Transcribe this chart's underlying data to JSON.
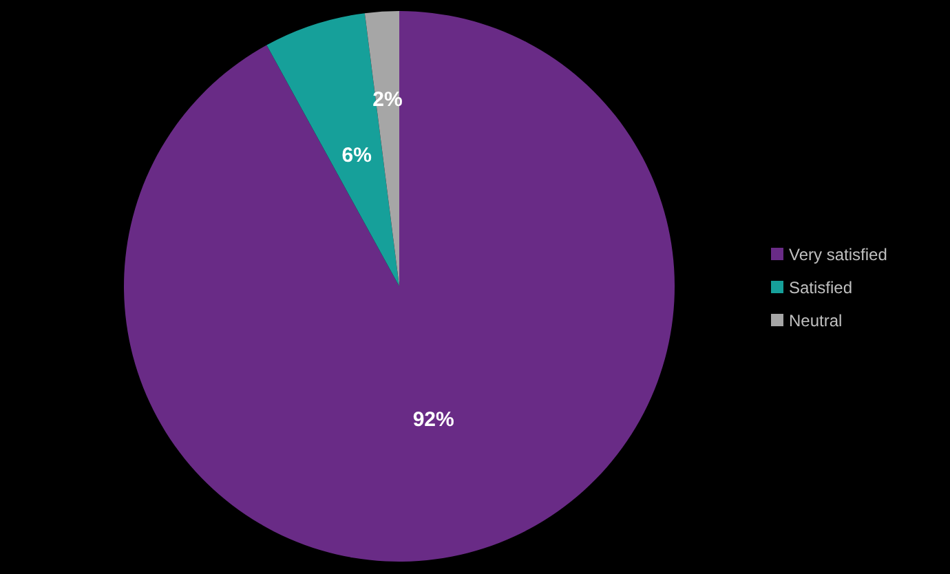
{
  "chart_data": {
    "type": "pie",
    "categories": [
      "Very satisfied",
      "Satisfied",
      "Neutral"
    ],
    "values": [
      92,
      6,
      2
    ],
    "colors": [
      "#692b86",
      "#16a09a",
      "#a6a6a6"
    ],
    "value_labels": [
      "92%",
      "6%",
      "2%"
    ],
    "legend": "right"
  }
}
